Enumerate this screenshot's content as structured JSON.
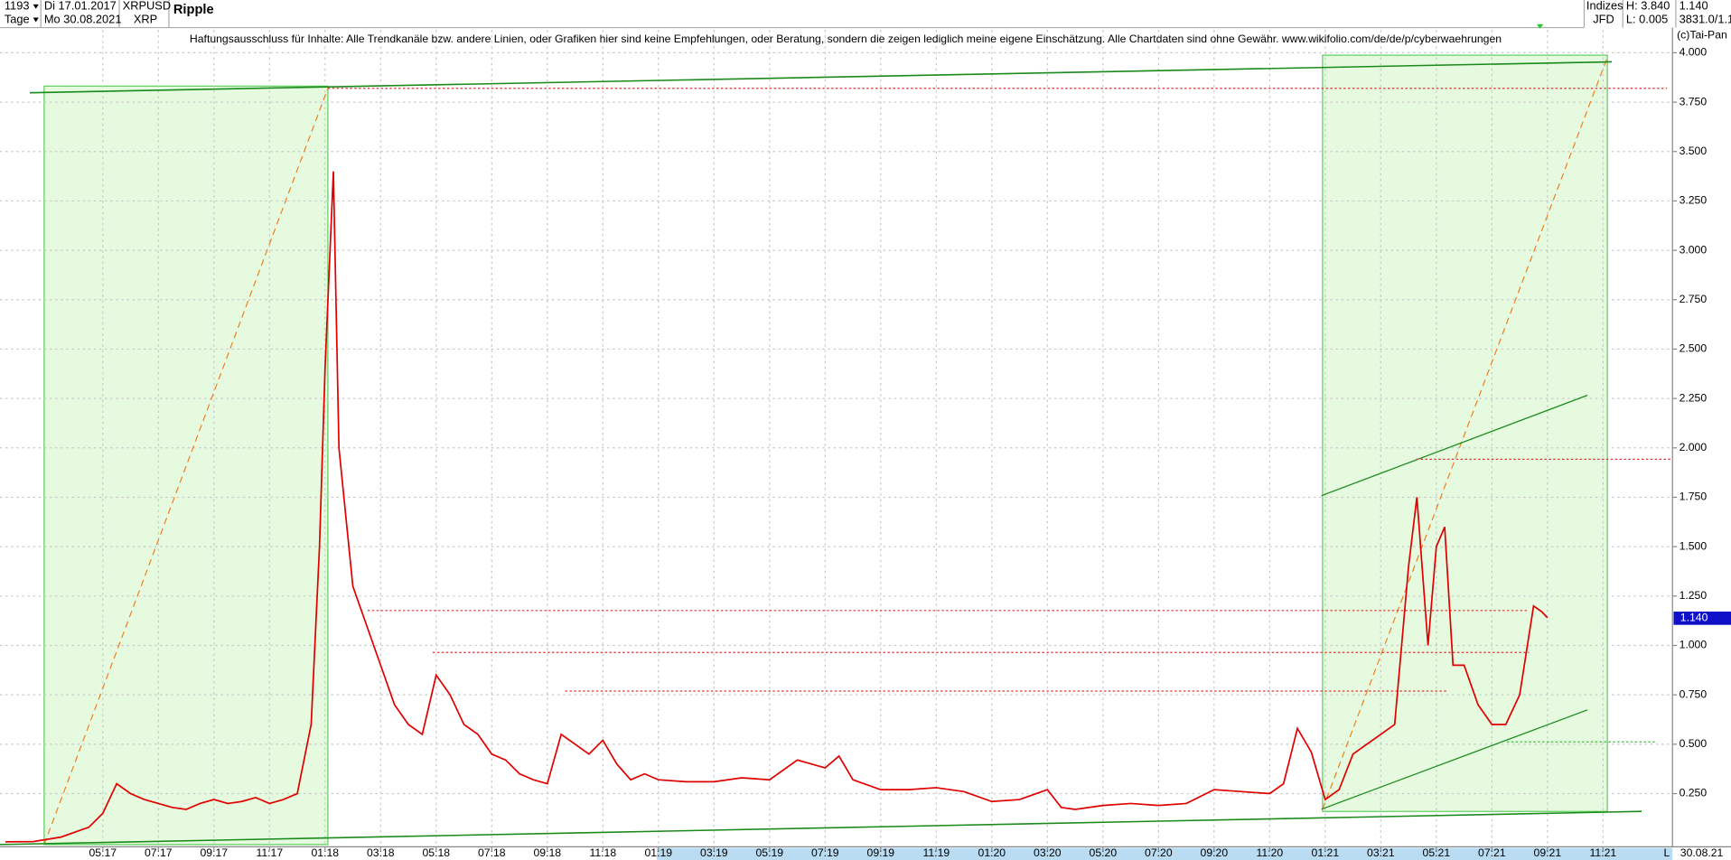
{
  "header": {
    "count": "1193",
    "period": "Tage",
    "date_from": "Di 17.01.2017",
    "date_to": "Mo 30.08.2021",
    "symbol": "XRPUSD",
    "symbol_short": "XRP",
    "group": "Indizes",
    "source": "JFD",
    "high": "H: 3.840",
    "low": "L: 0.005",
    "last": "1.140",
    "info": "3831.0/1.1",
    "copyright": "(c)Tai-Pan",
    "disclaimer": "Haftungsausschluss für Inhalte: Alle Trendkanäle bzw. andere Linien, oder Grafiken hier sind keine Empfehlungen, oder Beratung, sondern die zeigen lediglich meine eigene Einschätzung. Alle Chartdaten sind ohne Gewähr.  www.wikifolio.com/de/de/p/cyberwaehrungen",
    "end_date": "30.08.21",
    "scale_mode": "L",
    "price_tag": "1.140"
  },
  "chart_data": {
    "type": "line",
    "title": "Ripple",
    "color": "#e00000",
    "grid": true,
    "x": [
      0.5,
      1.5,
      2.5,
      3.5,
      4.0,
      4.5,
      5,
      5.5,
      6,
      6.5,
      7,
      7.5,
      8,
      8.5,
      9,
      9.5,
      10,
      10.5,
      11,
      11.5,
      11.8,
      12,
      12.3,
      12.5,
      13,
      13.5,
      14,
      14.5,
      15,
      15.5,
      16,
      16.5,
      17,
      17.5,
      18,
      18.5,
      19,
      19.5,
      20,
      20.5,
      21,
      21.5,
      22,
      22.5,
      23,
      23.5,
      24,
      25,
      26,
      27,
      28,
      29,
      30,
      30.5,
      31,
      32,
      33,
      34,
      35,
      36,
      37,
      38,
      38.5,
      39,
      40,
      41,
      42,
      43,
      44,
      45,
      46,
      46.5,
      47,
      47.5,
      48,
      48.5,
      49,
      49.5,
      50,
      50.5,
      51,
      51.3,
      51.7,
      52,
      52.3,
      52.6,
      53,
      53.5,
      54,
      54.5,
      55,
      55.5,
      55.8,
      56
    ],
    "values": [
      0.006,
      0.007,
      0.03,
      0.08,
      0.15,
      0.3,
      0.25,
      0.22,
      0.2,
      0.18,
      0.17,
      0.2,
      0.22,
      0.2,
      0.21,
      0.23,
      0.2,
      0.22,
      0.25,
      0.6,
      1.5,
      2.4,
      3.4,
      2.0,
      1.3,
      1.1,
      0.9,
      0.7,
      0.6,
      0.55,
      0.85,
      0.75,
      0.6,
      0.55,
      0.45,
      0.42,
      0.35,
      0.32,
      0.3,
      0.55,
      0.5,
      0.45,
      0.52,
      0.4,
      0.32,
      0.35,
      0.32,
      0.31,
      0.31,
      0.33,
      0.32,
      0.42,
      0.38,
      0.44,
      0.32,
      0.27,
      0.27,
      0.28,
      0.26,
      0.21,
      0.22,
      0.27,
      0.18,
      0.17,
      0.19,
      0.2,
      0.19,
      0.2,
      0.27,
      0.26,
      0.25,
      0.3,
      0.58,
      0.46,
      0.22,
      0.27,
      0.45,
      0.5,
      0.55,
      0.6,
      1.4,
      1.75,
      1.0,
      1.5,
      1.6,
      0.9,
      0.9,
      0.7,
      0.6,
      0.6,
      0.75,
      1.2,
      1.17,
      1.14
    ],
    "xlim": [
      0.3,
      60.5
    ],
    "xticks": [
      {
        "value": 4,
        "label": "05:17"
      },
      {
        "value": 6,
        "label": "07:17"
      },
      {
        "value": 8,
        "label": "09:17"
      },
      {
        "value": 10,
        "label": "11:17"
      },
      {
        "value": 12,
        "label": "01:18"
      },
      {
        "value": 14,
        "label": "03:18"
      },
      {
        "value": 16,
        "label": "05:18"
      },
      {
        "value": 18,
        "label": "07:18"
      },
      {
        "value": 20,
        "label": "09:18"
      },
      {
        "value": 22,
        "label": "11:18"
      },
      {
        "value": 24,
        "label": "01:19"
      },
      {
        "value": 26,
        "label": "03:19"
      },
      {
        "value": 28,
        "label": "05:19"
      },
      {
        "value": 30,
        "label": "07:19"
      },
      {
        "value": 32,
        "label": "09:19"
      },
      {
        "value": 34,
        "label": "11:19"
      },
      {
        "value": 36,
        "label": "01:20"
      },
      {
        "value": 38,
        "label": "03:20"
      },
      {
        "value": 40,
        "label": "05:20"
      },
      {
        "value": 42,
        "label": "07:20"
      },
      {
        "value": 44,
        "label": "09:20"
      },
      {
        "value": 46,
        "label": "11:20"
      },
      {
        "value": 48,
        "label": "01:21"
      },
      {
        "value": 50,
        "label": "03:21"
      },
      {
        "value": 52,
        "label": "05:21"
      },
      {
        "value": 54,
        "label": "07:21"
      },
      {
        "value": 56,
        "label": "09:21"
      },
      {
        "value": 58,
        "label": "11:21"
      }
    ],
    "ylim": [
      0,
      4.2
    ],
    "yticks": [
      {
        "value": 0.25,
        "label": "0.250"
      },
      {
        "value": 0.5,
        "label": "0.500"
      },
      {
        "value": 0.75,
        "label": "0.750"
      },
      {
        "value": 1,
        "label": "1.000"
      },
      {
        "value": 1.25,
        "label": "1.250"
      },
      {
        "value": 1.5,
        "label": "1.500"
      },
      {
        "value": 1.75,
        "label": "1.750"
      },
      {
        "value": 2,
        "label": "2.000"
      },
      {
        "value": 2.25,
        "label": "2.250"
      },
      {
        "value": 2.5,
        "label": "2.500"
      },
      {
        "value": 2.75,
        "label": "2.750"
      },
      {
        "value": 3,
        "label": "3.000"
      },
      {
        "value": 3.25,
        "label": "3.250"
      },
      {
        "value": 3.5,
        "label": "3.500"
      },
      {
        "value": 3.75,
        "label": "3.750"
      },
      {
        "value": 4,
        "label": "4.000"
      }
    ]
  }
}
